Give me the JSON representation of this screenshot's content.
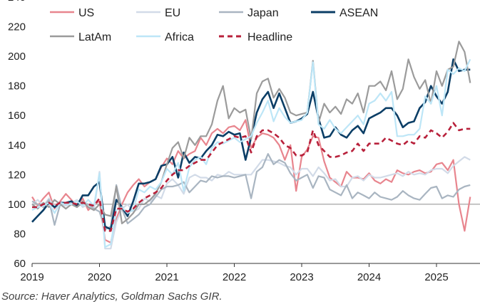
{
  "source": "Source: Haver Analytics, Goldman Sachs GIR.",
  "chart_data": {
    "type": "line",
    "title": "",
    "xlabel": "",
    "ylabel": "",
    "xlim": [
      2019,
      2025.6
    ],
    "ylim": [
      60,
      240
    ],
    "x_ticks": [
      2019,
      2020,
      2021,
      2022,
      2023,
      2024,
      2025
    ],
    "y_ticks": [
      60,
      80,
      100,
      120,
      140,
      160,
      180,
      200,
      220,
      240
    ],
    "reference_line": 100,
    "grid": false,
    "legend_position": "top",
    "x": [
      2019.0,
      2019.083,
      2019.167,
      2019.25,
      2019.333,
      2019.417,
      2019.5,
      2019.583,
      2019.667,
      2019.75,
      2019.833,
      2019.917,
      2020.0,
      2020.083,
      2020.167,
      2020.25,
      2020.333,
      2020.417,
      2020.5,
      2020.583,
      2020.667,
      2020.75,
      2020.833,
      2020.917,
      2021.0,
      2021.083,
      2021.167,
      2021.25,
      2021.333,
      2021.417,
      2021.5,
      2021.583,
      2021.667,
      2021.75,
      2021.833,
      2021.917,
      2022.0,
      2022.083,
      2022.167,
      2022.25,
      2022.333,
      2022.417,
      2022.5,
      2022.583,
      2022.667,
      2022.75,
      2022.833,
      2022.917,
      2023.0,
      2023.083,
      2023.167,
      2023.25,
      2023.333,
      2023.417,
      2023.5,
      2023.583,
      2023.667,
      2023.75,
      2023.833,
      2023.917,
      2024.0,
      2024.083,
      2024.167,
      2024.25,
      2024.333,
      2024.417,
      2024.5,
      2024.583,
      2024.667,
      2024.75,
      2024.833,
      2024.917,
      2025.0,
      2025.083,
      2025.167,
      2025.25,
      2025.333,
      2025.417,
      2025.5
    ],
    "series": [
      {
        "name": "US",
        "color": "#e8858e",
        "width": 2.2,
        "dash": "",
        "values": [
          105,
          99,
          104,
          108,
          97,
          102,
          107,
          103,
          99,
          104,
          96,
          100,
          102,
          76,
          74,
          90,
          100,
          108,
          113,
          117,
          112,
          115,
          117,
          125,
          131,
          127,
          136,
          131,
          134,
          136,
          145,
          140,
          148,
          151,
          148,
          152,
          153,
          150,
          157,
          138,
          145,
          148,
          147,
          145,
          140,
          130,
          140,
          109,
          132,
          137,
          146,
          145,
          129,
          118,
          115,
          112,
          122,
          118,
          118,
          117,
          121,
          116,
          114,
          117,
          115,
          123,
          121,
          120,
          122,
          123,
          121,
          122,
          127,
          128,
          123,
          130,
          100,
          82,
          105
        ]
      },
      {
        "name": "EU",
        "color": "#d2dbe8",
        "width": 2.2,
        "dash": "",
        "values": [
          100,
          103,
          99,
          104,
          98,
          100,
          99,
          101,
          103,
          98,
          100,
          96,
          122,
          70,
          70,
          88,
          97,
          100,
          95,
          97,
          104,
          102,
          106,
          104,
          114,
          117,
          113,
          107,
          118,
          120,
          118,
          118,
          116,
          120,
          119,
          122,
          120,
          120,
          120,
          120,
          125,
          130,
          130,
          129,
          128,
          126,
          125,
          120,
          124,
          124,
          119,
          125,
          121,
          116,
          117,
          112,
          112,
          118,
          119,
          116,
          120,
          118,
          118,
          119,
          120,
          121,
          119,
          122,
          120,
          121,
          120,
          123,
          124,
          124,
          121,
          126,
          129,
          132,
          130
        ]
      },
      {
        "name": "Japan",
        "color": "#a9b5c1",
        "width": 2.2,
        "dash": "",
        "values": [
          102,
          100,
          98,
          103,
          86,
          100,
          101,
          100,
          98,
          101,
          100,
          97,
          95,
          83,
          85,
          113,
          97,
          87,
          90,
          93,
          98,
          100,
          105,
          110,
          112,
          112,
          113,
          115,
          108,
          112,
          116,
          115,
          119,
          118,
          119,
          119,
          118,
          119,
          120,
          104,
          122,
          125,
          134,
          127,
          130,
          128,
          121,
          116,
          118,
          120,
          111,
          119,
          118,
          110,
          108,
          106,
          113,
          104,
          108,
          106,
          104,
          108,
          105,
          104,
          103,
          105,
          109,
          106,
          104,
          103,
          107,
          111,
          112,
          104,
          106,
          105,
          110,
          112,
          113
        ]
      },
      {
        "name": "ASEAN",
        "color": "#0b3e66",
        "width": 2.6,
        "dash": "",
        "values": [
          88,
          92,
          96,
          101,
          98,
          101,
          101,
          102,
          99,
          106,
          106,
          112,
          115,
          85,
          83,
          103,
          98,
          92,
          102,
          114,
          114,
          115,
          117,
          126,
          127,
          132,
          118,
          135,
          128,
          132,
          131,
          136,
          140,
          147,
          146,
          149,
          147,
          148,
          130,
          145,
          162,
          171,
          176,
          165,
          175,
          165,
          155,
          156,
          158,
          161,
          176,
          158,
          145,
          146,
          152,
          147,
          145,
          150,
          153,
          148,
          158,
          160,
          162,
          165,
          165,
          160,
          152,
          155,
          156,
          165,
          169,
          180,
          173,
          168,
          176,
          198,
          190,
          191,
          191
        ]
      },
      {
        "name": "LatAm",
        "color": "#9b9b9b",
        "width": 2.2,
        "dash": "",
        "values": [
          100,
          97,
          101,
          98,
          103,
          100,
          97,
          100,
          98,
          102,
          98,
          96,
          100,
          93,
          92,
          112,
          87,
          90,
          94,
          100,
          100,
          103,
          107,
          115,
          127,
          138,
          142,
          131,
          145,
          140,
          146,
          146,
          154,
          170,
          180,
          158,
          165,
          162,
          164,
          144,
          175,
          183,
          185,
          172,
          178,
          172,
          162,
          160,
          161,
          162,
          197,
          155,
          168,
          162,
          166,
          161,
          171,
          168,
          175,
          162,
          180,
          180,
          183,
          177,
          190,
          171,
          178,
          198,
          186,
          178,
          184,
          168,
          190,
          180,
          191,
          193,
          210,
          203,
          182
        ]
      },
      {
        "name": "Africa",
        "color": "#bde6f7",
        "width": 2.2,
        "dash": "",
        "values": [
          96,
          98,
          99,
          101,
          94,
          101,
          100,
          100,
          102,
          99,
          103,
          99,
          121,
          71,
          73,
          96,
          98,
          94,
          96,
          110,
          108,
          112,
          110,
          115,
          124,
          120,
          128,
          109,
          125,
          130,
          132,
          127,
          138,
          142,
          141,
          143,
          145,
          142,
          144,
          146,
          155,
          162,
          170,
          156,
          165,
          159,
          155,
          156,
          157,
          162,
          196,
          154,
          151,
          157,
          151,
          148,
          152,
          156,
          160,
          154,
          168,
          170,
          175,
          170,
          176,
          146,
          146,
          147,
          147,
          151,
          173,
          168,
          180,
          160,
          191,
          188,
          192,
          190,
          198
        ]
      },
      {
        "name": "Headline",
        "color": "#b8213b",
        "width": 2.6,
        "dash": "7 5",
        "values": [
          98,
          98,
          100,
          101,
          99,
          101,
          101,
          101,
          100,
          101,
          100,
          99,
          104,
          82,
          82,
          97,
          97,
          95,
          97,
          101,
          104,
          106,
          108,
          111,
          116,
          120,
          123,
          123,
          126,
          128,
          130,
          130,
          135,
          140,
          142,
          144,
          146,
          145,
          146,
          135,
          146,
          150,
          150,
          148,
          145,
          140,
          138,
          133,
          133,
          135,
          150,
          140,
          136,
          132,
          132,
          133,
          135,
          136,
          141,
          136,
          141,
          141,
          141,
          145,
          143,
          141,
          140,
          143,
          141,
          146,
          145,
          150,
          148,
          145,
          149,
          155,
          150,
          151,
          151
        ]
      }
    ]
  }
}
